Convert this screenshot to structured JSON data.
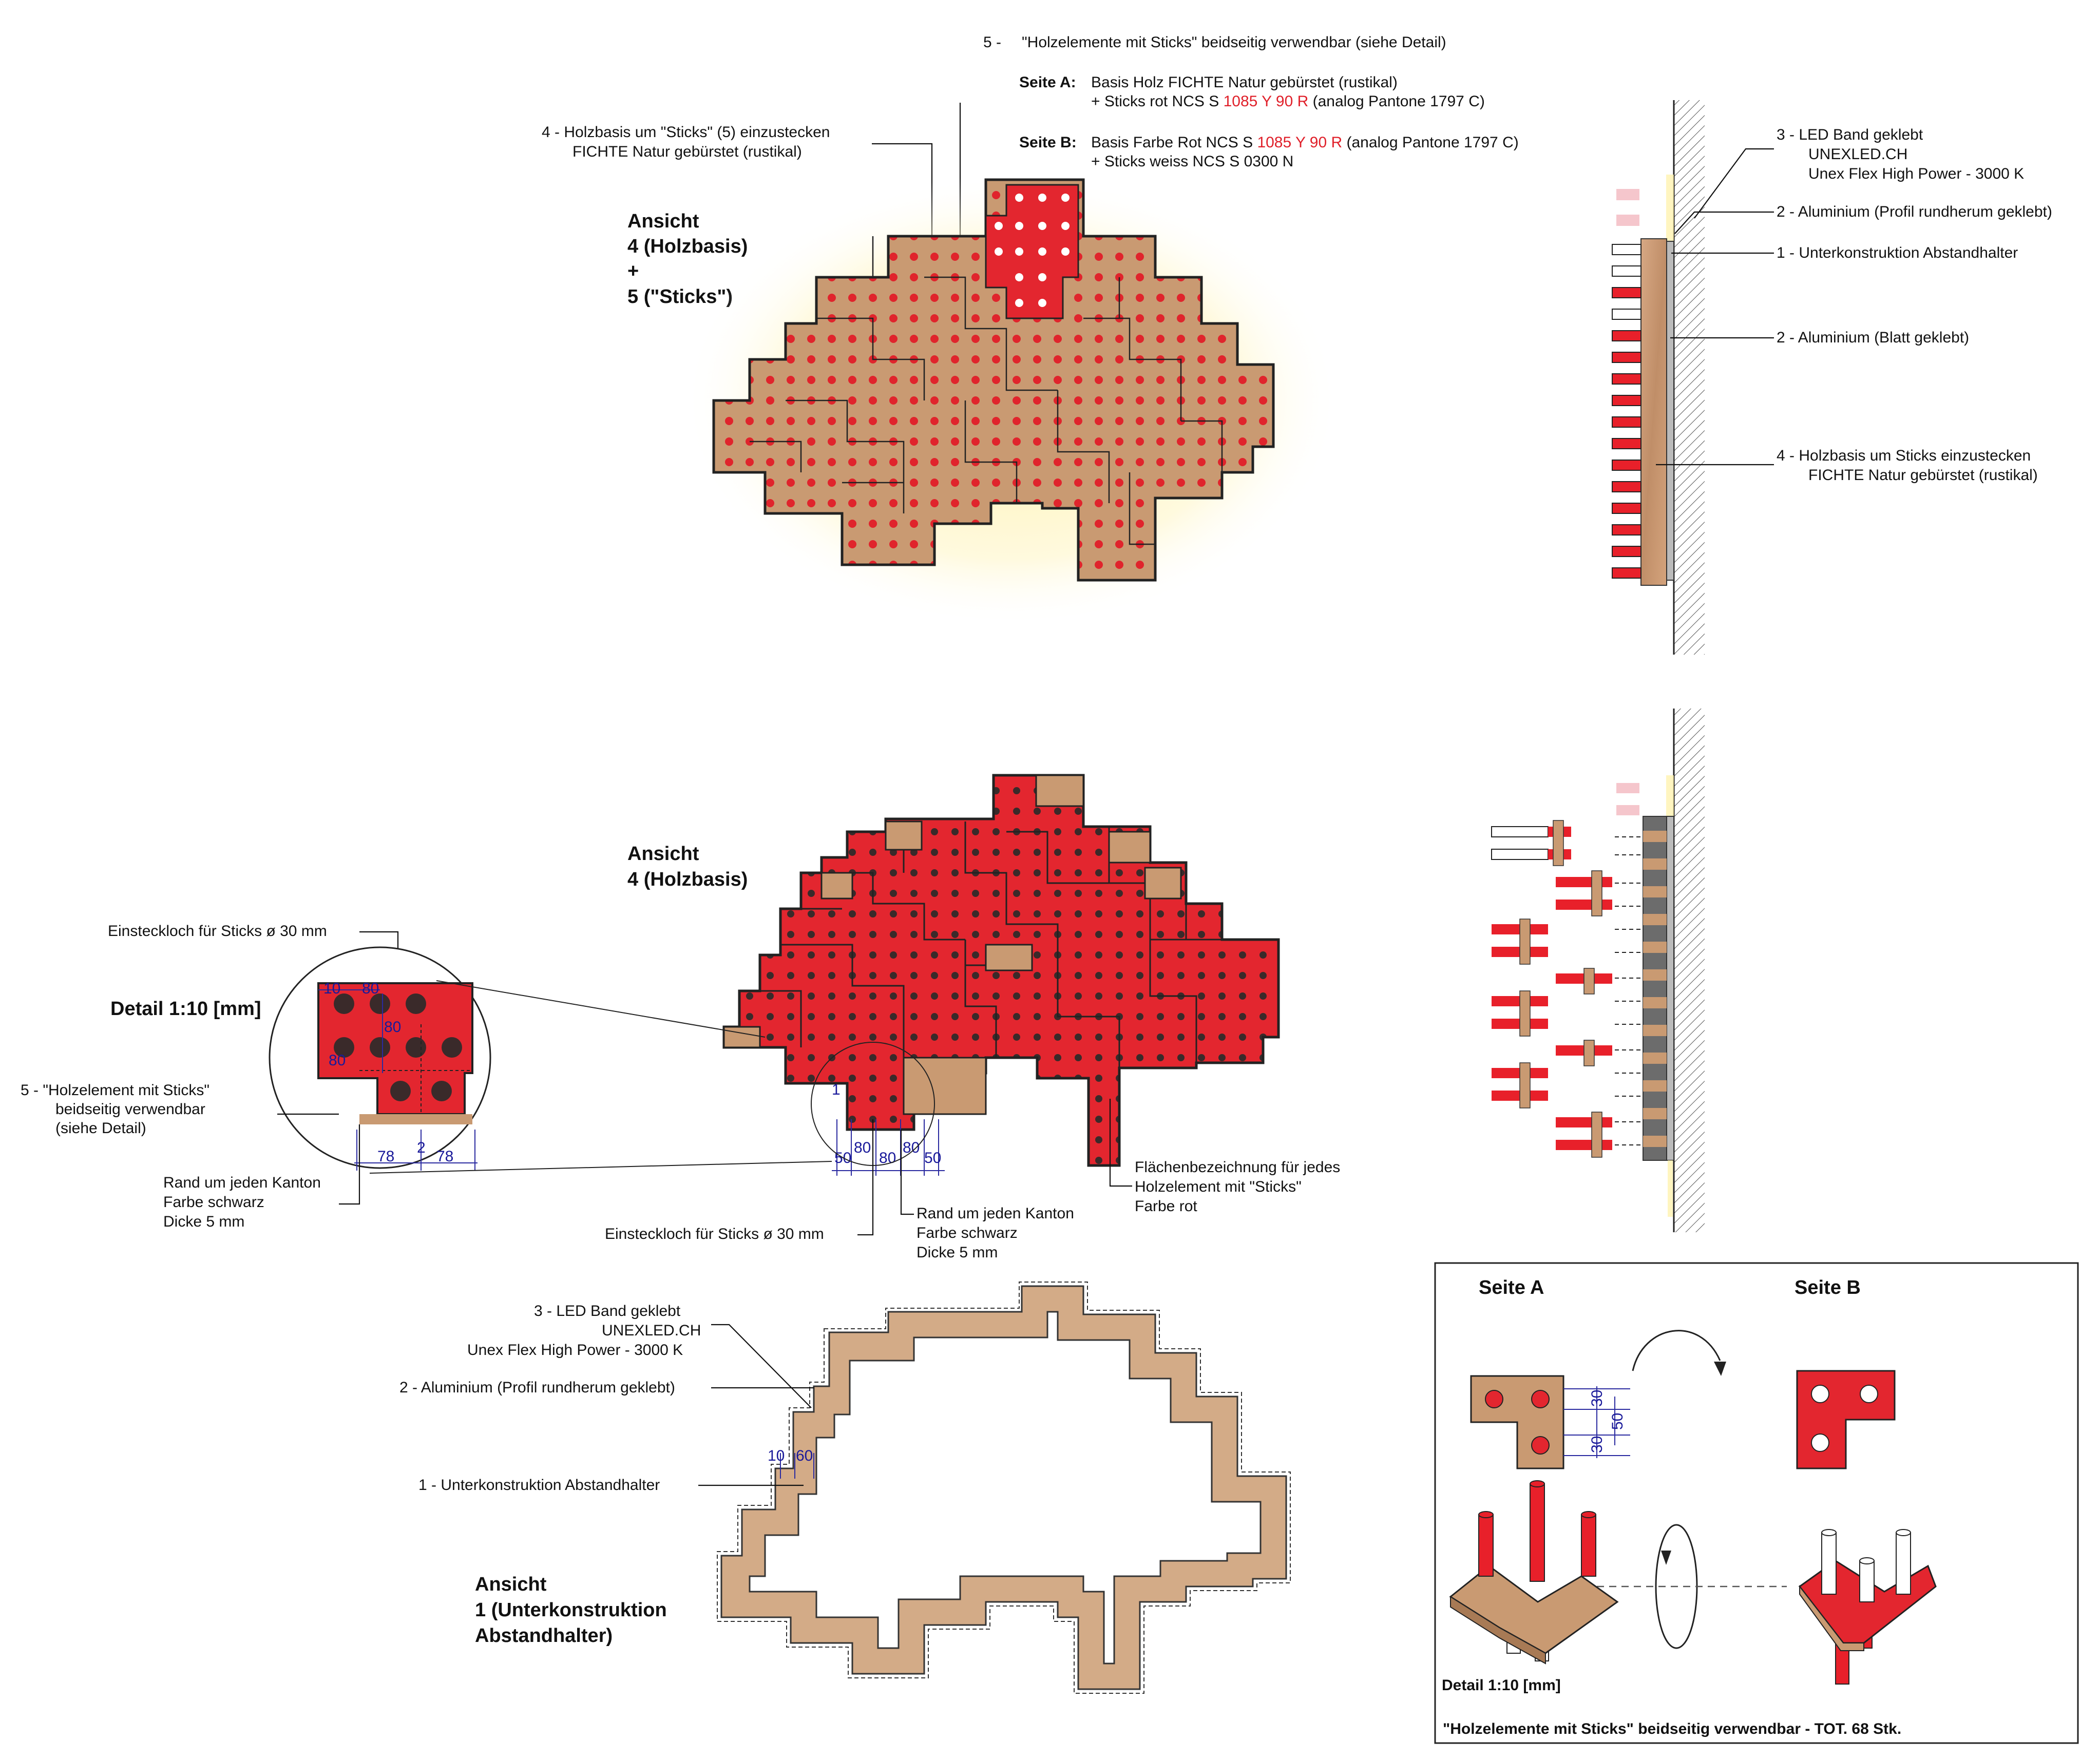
{
  "top_note": {
    "line1_num": "5 -",
    "line1": "\"Holzelemente mit Sticks\" beidseitig verwendbar (siehe Detail)",
    "seite_a_label": "Seite A:",
    "seite_a_1": "Basis Holz FICHTE Natur gebürstet (rustikal)",
    "seite_a_2_pre": "+ Sticks rot NCS S ",
    "seite_a_2_red": "1085 Y 90 R",
    "seite_a_2_post": " (analog Pantone 1797 C)",
    "seite_b_label": "Seite B:",
    "seite_b_1_pre": "Basis Farbe Rot NCS S ",
    "seite_b_1_red": "1085 Y 90 R",
    "seite_b_1_post": " (analog Pantone 1797 C)",
    "seite_b_2": "+ Sticks weiss NCS S 0300 N"
  },
  "note4_top": {
    "l1": "4 -  Holzbasis um \"Sticks\" (5) einzustecken",
    "l2": "FICHTE Natur gebürstet (rustikal)"
  },
  "view1_title": {
    "l1": "Ansicht",
    "l2": "4 (Holzbasis)",
    "l3": "+",
    "l4": "5 (\"Sticks\")"
  },
  "side_labels": {
    "n3_l1": "3 -  LED Band geklebt",
    "n3_l2": "UNEXLED.CH",
    "n3_l3": "Unex Flex High Power - 3000 K",
    "n2a": "2 - Aluminium (Profil rundherum geklebt)",
    "n1": "1 - Unterkonstruktion Abstandhalter",
    "n2b": "2 - Aluminium (Blatt geklebt)",
    "n4_l1": "4 -  Holzbasis um Sticks einzustecken",
    "n4_l2": "FICHTE Natur gebürstet (rustikal)"
  },
  "view2_title": {
    "l1": "Ansicht",
    "l2": "4 (Holzbasis)"
  },
  "detail": {
    "hole_label": "Einsteckloch für Sticks ø 30 mm",
    "title": "Detail 1:10 [mm]",
    "n5_l1": "5 -  \"Holzelement mit Sticks\"",
    "n5_l2": "beidseitig verwendbar",
    "n5_l3": "(siehe Detail)",
    "rand_l1": "Rand um jeden Kanton",
    "rand_l2": "Farbe schwarz",
    "rand_l3": "Dicke 5 mm",
    "d_10": "10",
    "d_80": "80",
    "d_80b": "80",
    "d_80c": "80",
    "d_78a": "78",
    "d_2": "2",
    "d_78b": "78"
  },
  "view2_dims": {
    "d50a": "50",
    "d80a": "80",
    "d80b": "80",
    "d80c": "80",
    "d50b": "50",
    "d1": "1"
  },
  "view2_notes": {
    "hole": "Einsteckloch für Sticks ø 30 mm",
    "rand_l1": "Rand um jeden Kanton",
    "rand_l2": "Farbe schwarz",
    "rand_l3": "Dicke 5 mm",
    "flaeche_l1": "Flächenbezeichnung für jedes",
    "flaeche_l2": "Holzelement mit \"Sticks\"",
    "flaeche_l3": "Farbe rot"
  },
  "view3": {
    "n3_l1": "3 -  LED Band geklebt",
    "n3_l2": "UNEXLED.CH",
    "n3_l3": "Unex Flex High Power - 3000 K",
    "n2": "2 - Aluminium (Profil rundherum geklebt)",
    "n1": "1 - Unterkonstruktion Abstandhalter",
    "d10": "10",
    "d60": "60",
    "title_l1": "Ansicht",
    "title_l2": "1 (Unterkonstruktion",
    "title_l3": "Abstandhalter)"
  },
  "box": {
    "seite_a": "Seite A",
    "seite_b": "Seite B",
    "d30a": "30",
    "d50": "50",
    "d30b": "30",
    "detail": "Detail 1:10 [mm]",
    "footer": "\"Holzelemente mit Sticks\" beidseitig verwendbar - TOT. 68 Stk."
  },
  "colors": {
    "wood": "#c99a72",
    "red": "#e3262f",
    "stick_red": "#e8202a",
    "glow": "#fff2a0",
    "dimension": "#2a2aa0"
  }
}
